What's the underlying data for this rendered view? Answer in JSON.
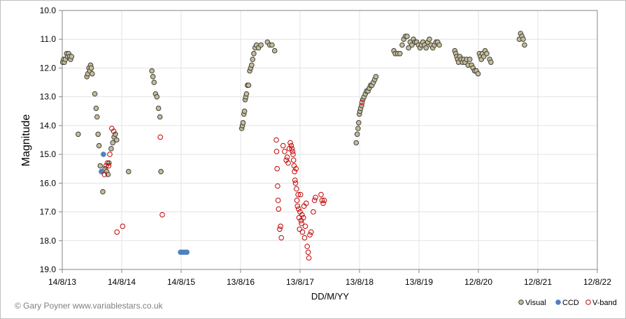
{
  "chart_data": {
    "type": "scatter",
    "title": "",
    "xlabel": "DD/M/YY",
    "ylabel": "Magnitude",
    "x_type": "date",
    "xlim": [
      "2013-08-14",
      "2022-08-12"
    ],
    "x_ticks": [
      {
        "date": "2013-08-14",
        "label": "14/8/13"
      },
      {
        "date": "2014-08-14",
        "label": "14/8/14"
      },
      {
        "date": "2015-08-14",
        "label": "14/8/15"
      },
      {
        "date": "2016-08-13",
        "label": "13/8/16"
      },
      {
        "date": "2017-08-13",
        "label": "13/8/17"
      },
      {
        "date": "2018-08-13",
        "label": "13/8/18"
      },
      {
        "date": "2019-08-13",
        "label": "13/8/19"
      },
      {
        "date": "2020-08-12",
        "label": "12/8/20"
      },
      {
        "date": "2021-08-12",
        "label": "12/8/21"
      },
      {
        "date": "2022-08-12",
        "label": "12/8/22"
      }
    ],
    "ylim": [
      10.0,
      19.0
    ],
    "y_reversed": true,
    "y_ticks": [
      "10.0",
      "11.0",
      "12.0",
      "13.0",
      "14.0",
      "15.0",
      "16.0",
      "17.0",
      "18.0",
      "19.0"
    ],
    "grid": true,
    "legend_position": "bottom-right",
    "series": [
      {
        "name": "Visual",
        "marker": "filled-circle",
        "fill": "#c4bd97",
        "stroke": "#3f3f3f",
        "points": [
          [
            "2013-08-17",
            11.8
          ],
          [
            "2013-08-22",
            11.7
          ],
          [
            "2013-08-27",
            11.8
          ],
          [
            "2013-09-02",
            11.7
          ],
          [
            "2013-09-10",
            11.5
          ],
          [
            "2013-09-16",
            11.6
          ],
          [
            "2013-09-22",
            11.5
          ],
          [
            "2013-09-28",
            11.6
          ],
          [
            "2013-10-04",
            11.7
          ],
          [
            "2013-10-10",
            11.6
          ],
          [
            "2013-11-20",
            14.3
          ],
          [
            "2014-01-12",
            12.3
          ],
          [
            "2014-01-18",
            12.2
          ],
          [
            "2014-01-25",
            12.0
          ],
          [
            "2014-01-30",
            12.1
          ],
          [
            "2014-02-04",
            11.9
          ],
          [
            "2014-02-08",
            12.0
          ],
          [
            "2014-02-14",
            12.2
          ],
          [
            "2014-03-02",
            12.9
          ],
          [
            "2014-03-10",
            13.4
          ],
          [
            "2014-03-16",
            13.7
          ],
          [
            "2014-03-22",
            14.3
          ],
          [
            "2014-03-28",
            14.7
          ],
          [
            "2014-04-04",
            15.4
          ],
          [
            "2014-04-12",
            15.6
          ],
          [
            "2014-04-20",
            16.3
          ],
          [
            "2014-05-04",
            15.5
          ],
          [
            "2014-05-14",
            15.6
          ],
          [
            "2014-05-22",
            15.7
          ],
          [
            "2014-05-28",
            15.3
          ],
          [
            "2014-06-10",
            14.8
          ],
          [
            "2014-06-20",
            14.6
          ],
          [
            "2014-06-28",
            14.4
          ],
          [
            "2014-07-06",
            14.3
          ],
          [
            "2014-07-14",
            14.5
          ],
          [
            "2014-09-25",
            15.6
          ],
          [
            "2015-02-15",
            12.1
          ],
          [
            "2015-02-22",
            12.3
          ],
          [
            "2015-03-01",
            12.5
          ],
          [
            "2015-03-10",
            12.9
          ],
          [
            "2015-03-18",
            13.0
          ],
          [
            "2015-03-28",
            13.4
          ],
          [
            "2015-04-06",
            13.7
          ],
          [
            "2015-04-12",
            15.6
          ],
          [
            "2016-08-20",
            14.1
          ],
          [
            "2016-08-24",
            14.0
          ],
          [
            "2016-08-28",
            13.9
          ],
          [
            "2016-09-02",
            13.6
          ],
          [
            "2016-09-06",
            13.5
          ],
          [
            "2016-09-10",
            13.1
          ],
          [
            "2016-09-14",
            13.0
          ],
          [
            "2016-09-18",
            12.9
          ],
          [
            "2016-09-24",
            12.6
          ],
          [
            "2016-10-01",
            12.6
          ],
          [
            "2016-10-08",
            12.1
          ],
          [
            "2016-10-14",
            12.0
          ],
          [
            "2016-10-20",
            11.9
          ],
          [
            "2016-10-26",
            11.7
          ],
          [
            "2016-11-02",
            11.5
          ],
          [
            "2016-11-10",
            11.3
          ],
          [
            "2016-11-18",
            11.2
          ],
          [
            "2016-12-01",
            11.3
          ],
          [
            "2016-12-16",
            11.2
          ],
          [
            "2017-01-25",
            11.1
          ],
          [
            "2017-02-08",
            11.2
          ],
          [
            "2017-02-22",
            11.2
          ],
          [
            "2017-03-10",
            11.4
          ],
          [
            "2018-07-24",
            14.6
          ],
          [
            "2018-07-30",
            14.3
          ],
          [
            "2018-08-04",
            14.1
          ],
          [
            "2018-08-08",
            13.9
          ],
          [
            "2018-08-12",
            13.6
          ],
          [
            "2018-08-16",
            13.5
          ],
          [
            "2018-08-20",
            13.4
          ],
          [
            "2018-08-26",
            13.3
          ],
          [
            "2018-09-02",
            13.1
          ],
          [
            "2018-09-10",
            13.0
          ],
          [
            "2018-09-18",
            12.9
          ],
          [
            "2018-09-26",
            12.8
          ],
          [
            "2018-10-04",
            12.8
          ],
          [
            "2018-10-12",
            12.7
          ],
          [
            "2018-10-20",
            12.6
          ],
          [
            "2018-10-28",
            12.6
          ],
          [
            "2018-11-06",
            12.5
          ],
          [
            "2018-11-14",
            12.4
          ],
          [
            "2018-11-22",
            12.3
          ],
          [
            "2019-03-12",
            11.4
          ],
          [
            "2019-03-20",
            11.5
          ],
          [
            "2019-04-04",
            11.5
          ],
          [
            "2019-04-18",
            11.5
          ],
          [
            "2019-05-02",
            11.2
          ],
          [
            "2019-05-12",
            11.0
          ],
          [
            "2019-05-22",
            10.9
          ],
          [
            "2019-06-01",
            10.9
          ],
          [
            "2019-06-10",
            11.3
          ],
          [
            "2019-06-20",
            11.1
          ],
          [
            "2019-07-01",
            11.2
          ],
          [
            "2019-07-10",
            11.0
          ],
          [
            "2019-07-20",
            11.1
          ],
          [
            "2019-07-30",
            11.1
          ],
          [
            "2019-08-10",
            11.2
          ],
          [
            "2019-08-20",
            11.3
          ],
          [
            "2019-08-28",
            11.2
          ],
          [
            "2019-09-06",
            11.1
          ],
          [
            "2019-09-16",
            11.2
          ],
          [
            "2019-09-26",
            11.3
          ],
          [
            "2019-10-06",
            11.1
          ],
          [
            "2019-10-16",
            11.0
          ],
          [
            "2019-10-26",
            11.2
          ],
          [
            "2019-11-06",
            11.3
          ],
          [
            "2019-11-16",
            11.2
          ],
          [
            "2019-11-26",
            11.1
          ],
          [
            "2019-12-06",
            11.1
          ],
          [
            "2019-12-16",
            11.2
          ],
          [
            "2020-03-20",
            11.4
          ],
          [
            "2020-03-26",
            11.5
          ],
          [
            "2020-04-01",
            11.6
          ],
          [
            "2020-04-06",
            11.7
          ],
          [
            "2020-04-12",
            11.8
          ],
          [
            "2020-04-20",
            11.6
          ],
          [
            "2020-04-28",
            11.7
          ],
          [
            "2020-05-06",
            11.8
          ],
          [
            "2020-05-14",
            11.7
          ],
          [
            "2020-05-22",
            11.8
          ],
          [
            "2020-06-01",
            11.7
          ],
          [
            "2020-06-10",
            11.9
          ],
          [
            "2020-06-20",
            11.7
          ],
          [
            "2020-07-01",
            11.9
          ],
          [
            "2020-07-10",
            12.0
          ],
          [
            "2020-07-20",
            12.1
          ],
          [
            "2020-07-30",
            12.1
          ],
          [
            "2020-08-10",
            12.2
          ],
          [
            "2020-08-18",
            11.5
          ],
          [
            "2020-08-24",
            11.6
          ],
          [
            "2020-08-30",
            11.7
          ],
          [
            "2020-09-06",
            11.5
          ],
          [
            "2020-09-14",
            11.6
          ],
          [
            "2020-09-22",
            11.4
          ],
          [
            "2020-10-02",
            11.5
          ],
          [
            "2020-10-20",
            11.7
          ],
          [
            "2020-10-28",
            11.8
          ],
          [
            "2021-04-20",
            11.0
          ],
          [
            "2021-04-28",
            10.8
          ],
          [
            "2021-05-06",
            10.9
          ],
          [
            "2021-05-14",
            11.0
          ],
          [
            "2021-05-22",
            11.2
          ]
        ]
      },
      {
        "name": "CCD",
        "marker": "filled-circle",
        "fill": "#4f81bd",
        "stroke": "#4f81bd",
        "points": [
          [
            "2014-04-14",
            15.6
          ],
          [
            "2014-04-24",
            15.0
          ],
          [
            "2015-08-10",
            18.4
          ],
          [
            "2015-08-22",
            18.4
          ],
          [
            "2015-09-05",
            18.4
          ],
          [
            "2015-09-18",
            18.4
          ]
        ]
      },
      {
        "name": "V-band",
        "marker": "open-circle",
        "fill": "none",
        "stroke": "#c00000",
        "points": [
          [
            "2014-04-30",
            15.7
          ],
          [
            "2014-05-10",
            15.4
          ],
          [
            "2014-05-18",
            15.3
          ],
          [
            "2014-05-26",
            15.4
          ],
          [
            "2014-06-02",
            15.0
          ],
          [
            "2014-06-14",
            14.1
          ],
          [
            "2014-06-26",
            14.2
          ],
          [
            "2014-07-16",
            17.7
          ],
          [
            "2014-08-20",
            17.5
          ],
          [
            "2015-04-08",
            14.4
          ],
          [
            "2015-04-20",
            17.1
          ],
          [
            "2017-03-20",
            14.5
          ],
          [
            "2017-03-22",
            14.9
          ],
          [
            "2017-03-25",
            15.5
          ],
          [
            "2017-03-28",
            16.1
          ],
          [
            "2017-03-31",
            16.6
          ],
          [
            "2017-04-03",
            16.9
          ],
          [
            "2017-04-10",
            17.6
          ],
          [
            "2017-04-15",
            17.5
          ],
          [
            "2017-04-20",
            17.9
          ],
          [
            "2017-05-01",
            14.7
          ],
          [
            "2017-05-10",
            14.9
          ],
          [
            "2017-05-20",
            15.2
          ],
          [
            "2017-05-26",
            15.1
          ],
          [
            "2017-06-01",
            15.3
          ],
          [
            "2017-06-08",
            14.8
          ],
          [
            "2017-06-14",
            14.6
          ],
          [
            "2017-06-20",
            14.7
          ],
          [
            "2017-06-24",
            14.8
          ],
          [
            "2017-06-28",
            14.9
          ],
          [
            "2017-07-01",
            15.0
          ],
          [
            "2017-07-04",
            15.2
          ],
          [
            "2017-07-07",
            15.4
          ],
          [
            "2017-07-10",
            15.6
          ],
          [
            "2017-07-13",
            15.9
          ],
          [
            "2017-07-16",
            16.0
          ],
          [
            "2017-07-19",
            15.5
          ],
          [
            "2017-07-22",
            16.2
          ],
          [
            "2017-07-25",
            16.6
          ],
          [
            "2017-07-28",
            16.8
          ],
          [
            "2017-08-01",
            16.4
          ],
          [
            "2017-08-04",
            16.9
          ],
          [
            "2017-08-07",
            17.2
          ],
          [
            "2017-08-10",
            17.6
          ],
          [
            "2017-08-13",
            17.0
          ],
          [
            "2017-08-16",
            16.4
          ],
          [
            "2017-08-19",
            17.3
          ],
          [
            "2017-08-22",
            17.4
          ],
          [
            "2017-08-25",
            17.1
          ],
          [
            "2017-08-28",
            17.7
          ],
          [
            "2017-09-02",
            17.2
          ],
          [
            "2017-09-06",
            16.8
          ],
          [
            "2017-09-10",
            17.9
          ],
          [
            "2017-09-14",
            17.5
          ],
          [
            "2017-09-20",
            16.7
          ],
          [
            "2017-09-26",
            18.2
          ],
          [
            "2017-10-02",
            18.4
          ],
          [
            "2017-10-06",
            18.6
          ],
          [
            "2017-10-12",
            17.8
          ],
          [
            "2017-10-20",
            17.7
          ],
          [
            "2017-11-02",
            17.0
          ],
          [
            "2017-11-10",
            16.6
          ],
          [
            "2017-11-16",
            16.5
          ],
          [
            "2017-12-20",
            16.4
          ],
          [
            "2017-12-26",
            16.6
          ],
          [
            "2018-01-02",
            16.7
          ],
          [
            "2018-01-08",
            16.6
          ],
          [
            "2018-08-28",
            13.2
          ]
        ]
      }
    ]
  },
  "credit": "© Gary Poyner  www.variablestars.co.uk"
}
